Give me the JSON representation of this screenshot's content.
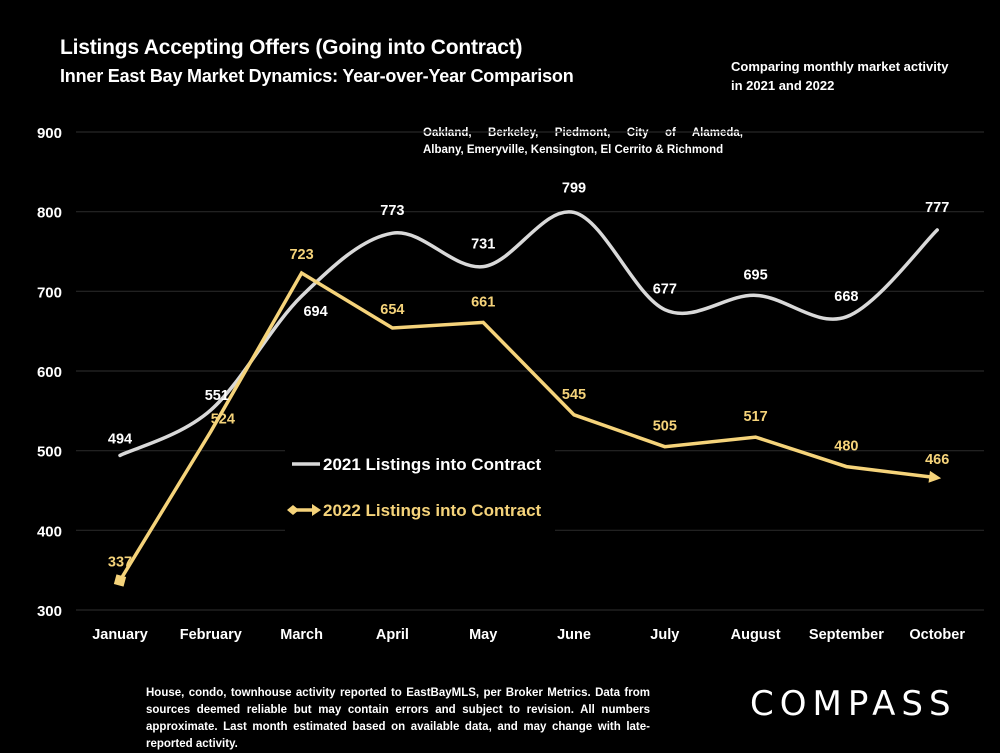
{
  "header": {
    "title": "Listings Accepting Offers (Going into Contract)",
    "subtitle": "Inner East Bay Market Dynamics: Year-over-Year Comparison",
    "side_note": "Comparing monthly market activity in 2021 and 2022",
    "region_note_line1": "Oakland, Berkeley, Piedmont, City of Alameda,",
    "region_note_line2": "Albany, Emeryville, Kensington, El Cerrito & Richmond"
  },
  "footer": {
    "disclaimer": "House, condo, townhouse activity reported to EastBayMLS, per Broker Metrics. Data from sources deemed reliable but may contain errors and subject to revision. All numbers approximate. Last month estimated based on available data, and may change with late-reported activity.",
    "logo": "COMPASS"
  },
  "colors": {
    "background": "#000000",
    "series_2021": "#d9d9d9",
    "series_2022": "#f5d37a",
    "gridline": "#262626",
    "text": "#ffffff"
  },
  "chart_data": {
    "type": "line",
    "title": "Listings Accepting Offers (Going into Contract)",
    "subtitle": "Inner East Bay Market Dynamics: Year-over-Year Comparison",
    "xlabel": "",
    "ylabel": "",
    "categories": [
      "January",
      "February",
      "March",
      "April",
      "May",
      "June",
      "July",
      "August",
      "September",
      "October"
    ],
    "ylim": [
      300,
      900
    ],
    "yticks": [
      300,
      400,
      500,
      600,
      700,
      800,
      900
    ],
    "grid": true,
    "legend_position": "center-left",
    "series": [
      {
        "name": "2021 Listings into Contract",
        "values": [
          494,
          551,
          694,
          773,
          731,
          799,
          677,
          695,
          668,
          777
        ],
        "smooth": true,
        "color": "#d9d9d9"
      },
      {
        "name": "2022 Listings into Contract",
        "values": [
          337,
          524,
          723,
          654,
          661,
          545,
          505,
          517,
          480,
          466
        ],
        "smooth": false,
        "color": "#f5d37a",
        "start_marker": "diamond",
        "end_marker": "arrow"
      }
    ]
  }
}
